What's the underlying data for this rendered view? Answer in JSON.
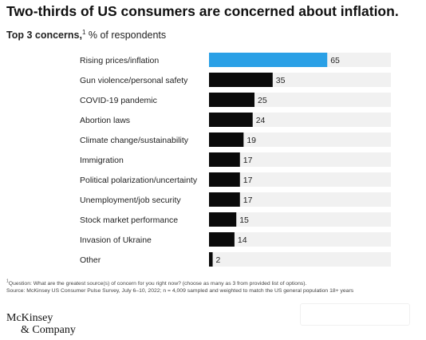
{
  "header": {
    "title": "Two-thirds of US consumers are concerned about inflation.",
    "subtitle_bold": "Top 3 concerns,",
    "subtitle_sup": "1",
    "subtitle_rest": " % of respondents"
  },
  "chart_data": {
    "type": "bar",
    "orientation": "horizontal",
    "categories": [
      "Rising prices/inflation",
      "Gun violence/personal safety",
      "COVID-19 pandemic",
      "Abortion laws",
      "Climate change/sustainability",
      "Immigration",
      "Political polarization/uncertainty",
      "Unemployment/job security",
      "Stock market performance",
      "Invasion of Ukraine",
      "Other"
    ],
    "values": [
      65,
      35,
      25,
      24,
      19,
      17,
      17,
      17,
      15,
      14,
      2
    ],
    "xlim": [
      0,
      100
    ],
    "highlight_index": 0,
    "colors": {
      "highlight": "#2aa0e6",
      "bar": "#0a0a0a",
      "track": "#f1f1f1"
    }
  },
  "footnotes": {
    "sup": "1",
    "question": "Question: What are the greatest source(s) of concern for you right now? (choose as many as 3 from provided list of options).",
    "source": "Source: McKinsey US Consumer Pulse Survey, July 6–10, 2022; n = 4,009 sampled and weighted to match the US general population 18+ years"
  },
  "logo": {
    "line1": "McKinsey",
    "line2": "& Company"
  }
}
